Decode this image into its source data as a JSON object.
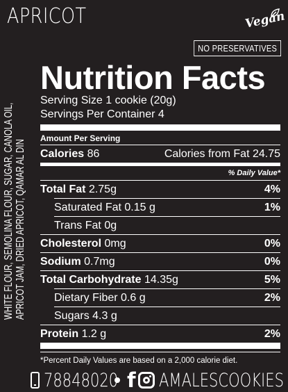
{
  "header": {
    "title": "APRICOT",
    "vegan_badge": "Vegan",
    "no_preservatives": "NO PRESERVATIVES"
  },
  "ingredients": {
    "line1": "WHITE FLOUR, SEMOLINA FLOUR, SUGAR, CANOLA OIL,",
    "line2": "APRICOT JAM, DRIED APRICOT, QAMAR AL DIN"
  },
  "nutrition": {
    "heading": "Nutrition Facts",
    "serving_size": "Serving Size 1 cookie (20g)",
    "servings_per_container": "Servings Per Container 4",
    "amount_per_serving": "Amount Per Serving",
    "calories_label": "Calories",
    "calories_value": "86",
    "calories_fat": "Calories from Fat 24.75",
    "daily_value_header": "% Daily Value*",
    "rows": [
      {
        "label": "Total Fat",
        "amount": "2.75g",
        "pct": "4%"
      },
      {
        "label": "Saturated Fat",
        "amount": "0.15 g",
        "pct": "1%"
      },
      {
        "label": "Trans Fat",
        "amount": "0g",
        "pct": ""
      },
      {
        "label": "Cholesterol",
        "amount": "0mg",
        "pct": "0%"
      },
      {
        "label": "Sodium",
        "amount": "0.7mg",
        "pct": "0%"
      },
      {
        "label": "Total Carbohydrate",
        "amount": "14.35g",
        "pct": "5%"
      },
      {
        "label": "Dietary Fiber",
        "amount": "0.6 g",
        "pct": "2%"
      },
      {
        "label": "Sugars",
        "amount": "4.3 g",
        "pct": ""
      },
      {
        "label": "Protein",
        "amount": "1.2 g",
        "pct": "2%"
      }
    ],
    "footnote": "*Percent Daily Values are based on a 2,000 calorie diet."
  },
  "contact": {
    "phone": "78848020",
    "handle": "AMALESCOOKIES",
    "icons": [
      "phone-icon",
      "facebook-icon",
      "instagram-icon"
    ]
  }
}
